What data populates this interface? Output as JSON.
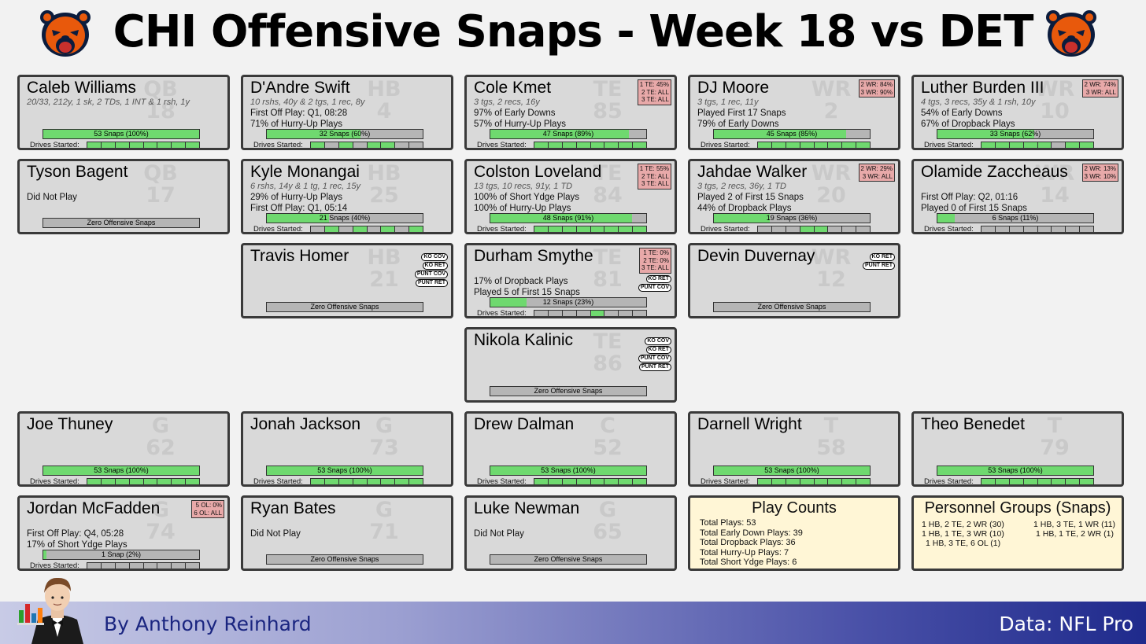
{
  "title": "CHI Offensive Snaps - Week 18 vs DET",
  "footer": {
    "author": "By Anthony Reinhard",
    "source": "Data: NFL Pro"
  },
  "drives_label": "Drives Started:",
  "colors": {
    "snap_fill": "#6fd96f",
    "bar_bg": "#b5b5b5",
    "share_bg": "#e8a9a9",
    "summary_bg": "#fff6d6",
    "card_bg": "#d9d9d9"
  },
  "players": [
    {
      "name": "Caleb Williams",
      "pos": "QB",
      "num": "18",
      "sub": "20/33, 212y, 1 sk, 2 TDs, 1 INT & 1 rsh, 1y",
      "lines": [],
      "snap_label": "53 Snaps (100%)",
      "snap_pct": 1.0,
      "drives": [
        1,
        1,
        1,
        1,
        1,
        1,
        1,
        1
      ]
    },
    {
      "name": "D'Andre Swift",
      "pos": "HB",
      "num": "4",
      "sub": "10 rshs, 40y & 2 tgs, 1 rec, 8y",
      "lines": [
        "First Off Play: Q1, 08:28",
        "71% of Hurry-Up Plays"
      ],
      "snap_label": "32 Snaps (60%)",
      "snap_pct": 0.6,
      "drives": [
        1,
        0,
        1,
        0,
        1,
        1,
        0,
        0
      ]
    },
    {
      "name": "Cole Kmet",
      "pos": "TE",
      "num": "85",
      "sub": "3 tgs, 2 recs, 16y",
      "lines": [
        "97% of Early Downs",
        "57% of Hurry-Up Plays"
      ],
      "snap_label": "47 Snaps (89%)",
      "snap_pct": 0.89,
      "drives": [
        1,
        1,
        1,
        1,
        1,
        1,
        1,
        1
      ],
      "share": [
        "1 TE: 45%",
        "2 TE: ALL",
        "3 TE: ALL"
      ]
    },
    {
      "name": "DJ Moore",
      "pos": "WR",
      "num": "2",
      "sub": "3 tgs, 1 rec, 11y",
      "lines": [
        "Played First 17 Snaps",
        "79% of Early Downs"
      ],
      "snap_label": "45 Snaps (85%)",
      "snap_pct": 0.85,
      "drives": [
        1,
        1,
        1,
        1,
        1,
        1,
        1,
        1
      ],
      "share": [
        "2 WR: 84%",
        "3 WR: 90%"
      ]
    },
    {
      "name": "Luther Burden III",
      "pos": "WR",
      "num": "10",
      "sub": "4 tgs, 3 recs, 35y & 1 rsh, 10y",
      "lines": [
        "54% of Early Downs",
        "67% of Dropback Plays"
      ],
      "snap_label": "33 Snaps (62%)",
      "snap_pct": 0.62,
      "drives": [
        1,
        1,
        1,
        1,
        1,
        0,
        1,
        1
      ],
      "share": [
        "2 WR: 74%",
        "3 WR: ALL"
      ]
    },
    {
      "name": "Tyson Bagent",
      "pos": "QB",
      "num": "17",
      "sub": "",
      "lines": [
        "Did Not Play"
      ],
      "snap_label": "Zero Offensive Snaps",
      "snap_pct": 0
    },
    {
      "name": "Kyle Monangai",
      "pos": "HB",
      "num": "25",
      "sub": "6 rshs, 14y & 1 tg, 1 rec, 15y",
      "lines": [
        "29% of Hurry-Up Plays",
        "First Off Play: Q1, 05:14"
      ],
      "snap_label": "21 Snaps (40%)",
      "snap_pct": 0.4,
      "drives": [
        0,
        1,
        0,
        1,
        0,
        1,
        0,
        1
      ]
    },
    {
      "name": "Colston Loveland",
      "pos": "TE",
      "num": "84",
      "sub": "13 tgs, 10 recs, 91y, 1 TD",
      "lines": [
        "100% of Short Ydge Plays",
        "100% of Hurry-Up Plays"
      ],
      "snap_label": "48 Snaps (91%)",
      "snap_pct": 0.91,
      "drives": [
        1,
        1,
        1,
        1,
        1,
        1,
        1,
        1
      ],
      "share": [
        "1 TE: 55%",
        "2 TE: ALL",
        "3 TE: ALL"
      ]
    },
    {
      "name": "Jahdae Walker",
      "pos": "WR",
      "num": "20",
      "sub": "3 tgs, 2 recs, 36y, 1 TD",
      "lines": [
        "Played 2 of First 15 Snaps",
        "44% of Dropback Plays"
      ],
      "snap_label": "19 Snaps (36%)",
      "snap_pct": 0.36,
      "drives": [
        0,
        0,
        0,
        1,
        1,
        0,
        0,
        0
      ],
      "share": [
        "2 WR: 29%",
        "3 WR: ALL"
      ]
    },
    {
      "name": "Olamide Zaccheaus",
      "pos": "WR",
      "num": "14",
      "sub": "",
      "lines": [
        "First Off Play: Q2, 01:16",
        "Played 0 of First 15 Snaps"
      ],
      "snap_label": "6 Snaps (11%)",
      "snap_pct": 0.11,
      "drives": [
        0,
        0,
        0,
        0,
        0,
        0,
        0,
        0
      ],
      "share": [
        "2 WR: 13%",
        "3 WR: 10%"
      ]
    },
    {
      "name": "Travis Homer",
      "pos": "HB",
      "num": "21",
      "sub": "",
      "lines": [],
      "snap_label": "Zero Offensive Snaps",
      "snap_pct": 0,
      "st": [
        "KO COV",
        "KO RET",
        "PUNT COV",
        "PUNT RET"
      ]
    },
    {
      "name": "Durham Smythe",
      "pos": "TE",
      "num": "81",
      "sub": "",
      "lines": [
        "17% of Dropback Plays",
        "Played 5 of First 15 Snaps"
      ],
      "snap_label": "12 Snaps (23%)",
      "snap_pct": 0.23,
      "drives": [
        0,
        0,
        0,
        0,
        1,
        0,
        0,
        0
      ],
      "share": [
        "1 TE: 0%",
        "2 TE: 0%",
        "3 TE: ALL"
      ],
      "st": [
        "KO RET",
        "PUNT COV"
      ]
    },
    {
      "name": "Devin Duvernay",
      "pos": "WR",
      "num": "12",
      "sub": "",
      "lines": [],
      "snap_label": "Zero Offensive Snaps",
      "snap_pct": 0,
      "st": [
        "KO RET",
        "PUNT RET"
      ]
    },
    {
      "name": "Nikola Kalinic",
      "pos": "TE",
      "num": "86",
      "sub": "",
      "lines": [],
      "snap_label": "Zero Offensive Snaps",
      "snap_pct": 0,
      "st": [
        "KO COV",
        "KO RET",
        "PUNT COV",
        "PUNT RET"
      ]
    },
    {
      "name": "Joe Thuney",
      "pos": "G",
      "num": "62",
      "sub": "",
      "lines": [],
      "snap_label": "53 Snaps (100%)",
      "snap_pct": 1.0,
      "drives": [
        1,
        1,
        1,
        1,
        1,
        1,
        1,
        1
      ]
    },
    {
      "name": "Jonah Jackson",
      "pos": "G",
      "num": "73",
      "sub": "",
      "lines": [],
      "snap_label": "53 Snaps (100%)",
      "snap_pct": 1.0,
      "drives": [
        1,
        1,
        1,
        1,
        1,
        1,
        1,
        1
      ]
    },
    {
      "name": "Drew Dalman",
      "pos": "C",
      "num": "52",
      "sub": "",
      "lines": [],
      "snap_label": "53 Snaps (100%)",
      "snap_pct": 1.0,
      "drives": [
        1,
        1,
        1,
        1,
        1,
        1,
        1,
        1
      ]
    },
    {
      "name": "Darnell Wright",
      "pos": "T",
      "num": "58",
      "sub": "",
      "lines": [],
      "snap_label": "53 Snaps (100%)",
      "snap_pct": 1.0,
      "drives": [
        1,
        1,
        1,
        1,
        1,
        1,
        1,
        1
      ]
    },
    {
      "name": "Theo Benedet",
      "pos": "T",
      "num": "79",
      "sub": "",
      "lines": [],
      "snap_label": "53 Snaps (100%)",
      "snap_pct": 1.0,
      "drives": [
        1,
        1,
        1,
        1,
        1,
        1,
        1,
        1
      ]
    },
    {
      "name": "Jordan McFadden",
      "pos": "G",
      "num": "74",
      "sub": "",
      "lines": [
        "First Off Play: Q4, 05:28",
        "17% of Short Ydge Plays"
      ],
      "snap_label": "1 Snap (2%)",
      "snap_pct": 0.02,
      "drives": [
        0,
        0,
        0,
        0,
        0,
        0,
        0,
        0
      ],
      "share": [
        "5 OL: 0%",
        "6 OL: ALL"
      ]
    },
    {
      "name": "Ryan Bates",
      "pos": "G",
      "num": "71",
      "sub": "",
      "lines": [
        "Did Not Play"
      ],
      "snap_label": "Zero Offensive Snaps",
      "snap_pct": 0
    },
    {
      "name": "Luke Newman",
      "pos": "G",
      "num": "65",
      "sub": "",
      "lines": [
        "Did Not Play"
      ],
      "snap_label": "Zero Offensive Snaps",
      "snap_pct": 0
    }
  ],
  "play_counts": {
    "title": "Play Counts",
    "items": [
      "Total Plays: 53",
      "Total Early Down Plays: 39",
      "Total Dropback Plays: 36",
      "Total Hurry-Up Plays: 7",
      "Total Short Ydge Plays: 6"
    ]
  },
  "personnel": {
    "title": "Personnel Groups (Snaps)",
    "items": [
      "1 HB, 2 TE, 2 WR (30)",
      "1 HB, 3 TE, 1 WR (11)",
      "1 HB, 1 TE, 3 WR (10)",
      "1 HB, 1 TE, 2 WR (1)",
      "1 HB, 3 TE, 6 OL (1)"
    ]
  }
}
